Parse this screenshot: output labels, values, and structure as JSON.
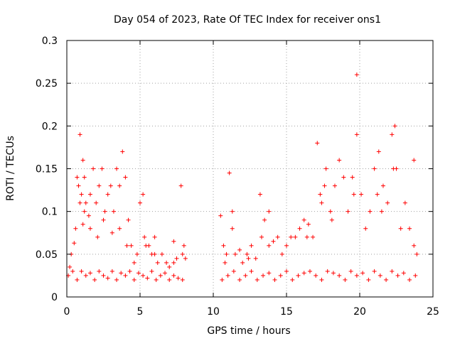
{
  "chart_data": {
    "type": "scatter",
    "title": "Day 054 of 2023, Rate Of TEC Index for receiver ons1",
    "xlabel": "GPS time / hours",
    "ylabel": "ROTI / TECUs",
    "xlim": [
      0,
      25
    ],
    "ylim": [
      0,
      0.3
    ],
    "xticks": [
      "0",
      "5",
      "10",
      "15",
      "20",
      "25"
    ],
    "yticks": [
      "0",
      "0.05",
      "0.1",
      "0.15",
      "0.2",
      "0.25",
      "0.3"
    ],
    "grid": true,
    "marker": "+",
    "color": "#ff0000",
    "series": [
      {
        "x": [
          0.2,
          0.3,
          0.5,
          0.6,
          0.7,
          0.8,
          0.9,
          1.0,
          1.1,
          1.2,
          1.3,
          1.5,
          1.6,
          1.8,
          2.0,
          2.2,
          2.4,
          2.6,
          2.8,
          3.0,
          3.2,
          3.4,
          3.6,
          3.8,
          4.0,
          4.2,
          4.4,
          4.6,
          4.8,
          5.0,
          5.2,
          5.4,
          5.6,
          5.8,
          6.0,
          6.2,
          6.5,
          6.8,
          7.0,
          7.3,
          7.5,
          7.8,
          8.0,
          8.1,
          0.1,
          0.4,
          0.7,
          1.0,
          1.3,
          1.6,
          1.9,
          2.2,
          2.5,
          2.8,
          3.1,
          3.4,
          3.7,
          4.0,
          4.3,
          4.6,
          4.9,
          5.2,
          5.5,
          5.8,
          6.1,
          6.4,
          6.7,
          7.0,
          7.3,
          7.6,
          7.9,
          0.9,
          1.1,
          1.2,
          1.6,
          2.1,
          2.5,
          3.1,
          3.6,
          4.1,
          5.3,
          6.0,
          7.3,
          7.9,
          10.5,
          10.7,
          10.9,
          11.1,
          11.3,
          11.5,
          11.8,
          12.0,
          12.3,
          12.6,
          12.9,
          13.2,
          13.5,
          13.8,
          14.1,
          14.4,
          14.7,
          15.0,
          15.3,
          15.6,
          15.9,
          16.2,
          16.5,
          16.8,
          17.1,
          17.4,
          17.7,
          18.0,
          18.3,
          18.6,
          18.9,
          19.2,
          19.5,
          19.8,
          20.1,
          20.4,
          20.7,
          21.0,
          21.3,
          21.6,
          21.9,
          22.2,
          22.5,
          22.8,
          23.1,
          23.4,
          23.7,
          23.9,
          10.6,
          11.0,
          11.4,
          11.8,
          12.2,
          12.6,
          13.0,
          13.4,
          13.8,
          14.2,
          14.6,
          15.0,
          15.4,
          15.8,
          16.2,
          16.6,
          17.0,
          17.4,
          17.8,
          18.2,
          18.6,
          19.0,
          19.4,
          19.8,
          20.2,
          20.6,
          21.0,
          21.4,
          21.8,
          22.2,
          22.6,
          23.0,
          23.4,
          23.8,
          10.8,
          11.3,
          12.4,
          13.3,
          13.8,
          16.4,
          17.3,
          17.6,
          18.1,
          19.6,
          19.8,
          21.2,
          21.5,
          22.3,
          22.4,
          23.7
        ],
        "y": [
          0.035,
          0.05,
          0.063,
          0.08,
          0.14,
          0.13,
          0.19,
          0.12,
          0.16,
          0.14,
          0.11,
          0.095,
          0.12,
          0.15,
          0.11,
          0.13,
          0.15,
          0.1,
          0.12,
          0.13,
          0.1,
          0.15,
          0.13,
          0.17,
          0.14,
          0.09,
          0.06,
          0.04,
          0.05,
          0.11,
          0.12,
          0.06,
          0.06,
          0.05,
          0.07,
          0.04,
          0.05,
          0.04,
          0.035,
          0.04,
          0.045,
          0.13,
          0.06,
          0.045,
          0.025,
          0.03,
          0.02,
          0.03,
          0.025,
          0.028,
          0.02,
          0.03,
          0.025,
          0.022,
          0.03,
          0.02,
          0.028,
          0.025,
          0.03,
          0.02,
          0.028,
          0.025,
          0.022,
          0.03,
          0.02,
          0.025,
          0.028,
          0.02,
          0.025,
          0.022,
          0.02,
          0.11,
          0.085,
          0.1,
          0.08,
          0.07,
          0.09,
          0.075,
          0.08,
          0.06,
          0.07,
          0.05,
          0.065,
          0.05,
          0.095,
          0.06,
          0.05,
          0.145,
          0.1,
          0.05,
          0.055,
          0.04,
          0.05,
          0.06,
          0.045,
          0.12,
          0.09,
          0.1,
          0.065,
          0.07,
          0.05,
          0.06,
          0.07,
          0.07,
          0.08,
          0.09,
          0.085,
          0.07,
          0.18,
          0.11,
          0.15,
          0.1,
          0.13,
          0.16,
          0.14,
          0.1,
          0.14,
          0.19,
          0.12,
          0.08,
          0.1,
          0.15,
          0.17,
          0.13,
          0.11,
          0.19,
          0.15,
          0.08,
          0.11,
          0.08,
          0.06,
          0.05,
          0.02,
          0.025,
          0.03,
          0.02,
          0.025,
          0.03,
          0.02,
          0.025,
          0.028,
          0.02,
          0.025,
          0.03,
          0.02,
          0.025,
          0.028,
          0.03,
          0.025,
          0.02,
          0.03,
          0.028,
          0.025,
          0.02,
          0.03,
          0.025,
          0.028,
          0.02,
          0.03,
          0.025,
          0.02,
          0.03,
          0.025,
          0.028,
          0.02,
          0.025,
          0.04,
          0.08,
          0.045,
          0.07,
          0.06,
          0.07,
          0.12,
          0.13,
          0.09,
          0.12,
          0.26,
          0.12,
          0.1,
          0.15,
          0.2,
          0.16
        ]
      }
    ]
  }
}
